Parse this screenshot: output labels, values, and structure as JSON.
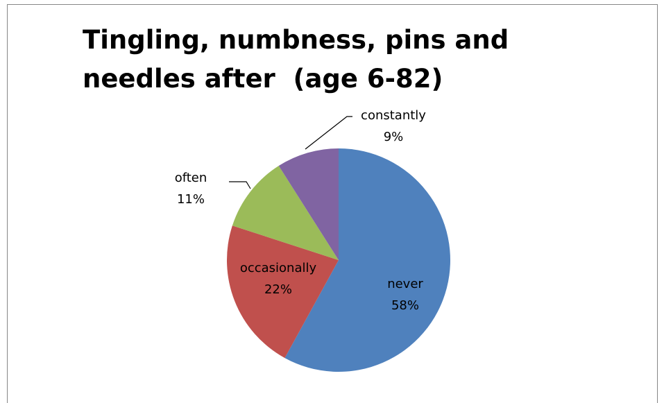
{
  "chart_data": {
    "type": "pie",
    "title": "Tingling, numbness, pins and needles after  (age 6-82)",
    "slices": [
      {
        "label": "never",
        "percent_label": "58%",
        "value": 58,
        "color": "#4F81BD"
      },
      {
        "label": "occasionally",
        "percent_label": "22%",
        "value": 22,
        "color": "#C0504D"
      },
      {
        "label": "often",
        "percent_label": "11%",
        "value": 11,
        "color": "#9BBB59"
      },
      {
        "label": "constantly",
        "percent_label": "9%",
        "value": 9,
        "color": "#8064A2"
      }
    ],
    "legend": "none",
    "data_labels": "category name and percentage"
  }
}
